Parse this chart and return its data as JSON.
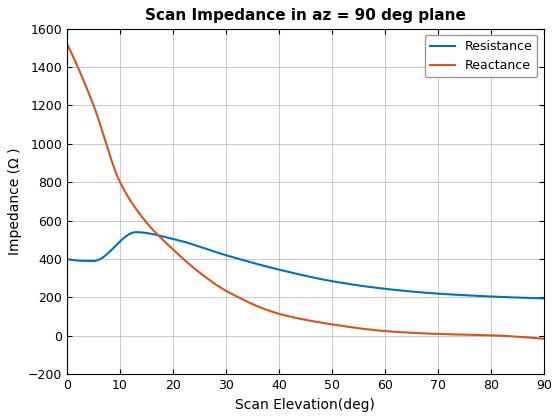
{
  "title": "Scan Impedance in az = 90 deg plane",
  "xlabel": "Scan Elevation(deg)",
  "ylabel": "Impedance (Ω )",
  "xlim": [
    0,
    90
  ],
  "ylim": [
    -200,
    1600
  ],
  "yticks": [
    -200,
    0,
    200,
    400,
    600,
    800,
    1000,
    1200,
    1400,
    1600
  ],
  "xticks": [
    0,
    10,
    20,
    30,
    40,
    50,
    60,
    70,
    80,
    90
  ],
  "resistance_color": "#0072BD",
  "reactance_color": "#D95319",
  "line_width": 1.5,
  "legend_labels": [
    "Resistance",
    "Reactance"
  ],
  "background_color": "#ffffff",
  "grid_color": "#b0b0b0",
  "resistance_keypoints": [
    [
      0,
      400
    ],
    [
      5,
      390
    ],
    [
      13,
      540
    ],
    [
      20,
      505
    ],
    [
      30,
      420
    ],
    [
      40,
      345
    ],
    [
      50,
      285
    ],
    [
      60,
      245
    ],
    [
      70,
      220
    ],
    [
      80,
      205
    ],
    [
      90,
      195
    ]
  ],
  "reactance_keypoints": [
    [
      0,
      1520
    ],
    [
      5,
      1200
    ],
    [
      10,
      800
    ],
    [
      15,
      590
    ],
    [
      20,
      450
    ],
    [
      25,
      330
    ],
    [
      30,
      235
    ],
    [
      40,
      115
    ],
    [
      50,
      60
    ],
    [
      60,
      25
    ],
    [
      70,
      10
    ],
    [
      80,
      3
    ],
    [
      90,
      -15
    ]
  ]
}
